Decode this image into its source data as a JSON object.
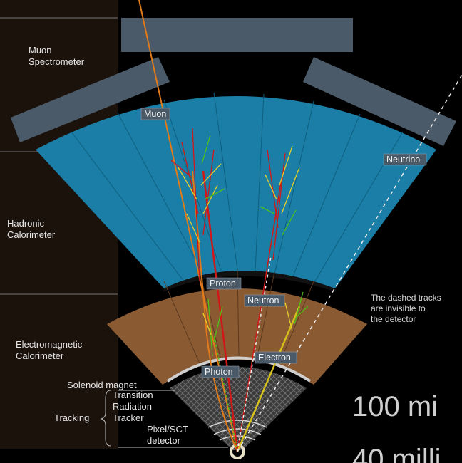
{
  "layers": {
    "muon_spectrometer": [
      "Muon",
      "Spectrometer"
    ],
    "hadronic_calorimeter": [
      "Hadronic",
      "Calorimeter"
    ],
    "em_calorimeter": [
      "Electromagnetic",
      "Calorimeter"
    ],
    "solenoid": "Solenoid magnet",
    "tracking": "Tracking",
    "trt": [
      "Transition",
      "Radiation",
      "Tracker"
    ],
    "pixel": [
      "Pixel/SCT",
      "detector"
    ]
  },
  "particles": {
    "muon": "Muon",
    "neutrino": "Neutrino",
    "proton": "Proton",
    "neutron": "Neutron",
    "electron": "Electron",
    "photon": "Photon"
  },
  "note": [
    "The dashed tracks",
    "are invisible to",
    "the detector"
  ],
  "overlay": [
    "100 mi",
    "40 milli"
  ],
  "colors": {
    "hadronic": "#1a7ea6",
    "em": "#8a5a33",
    "spectrometer": "#4a5a68",
    "muon_track": "#e07a1a",
    "proton_track": "#d01818",
    "electron_track": "#d6c21a",
    "shower_green": "#4fc21a"
  }
}
